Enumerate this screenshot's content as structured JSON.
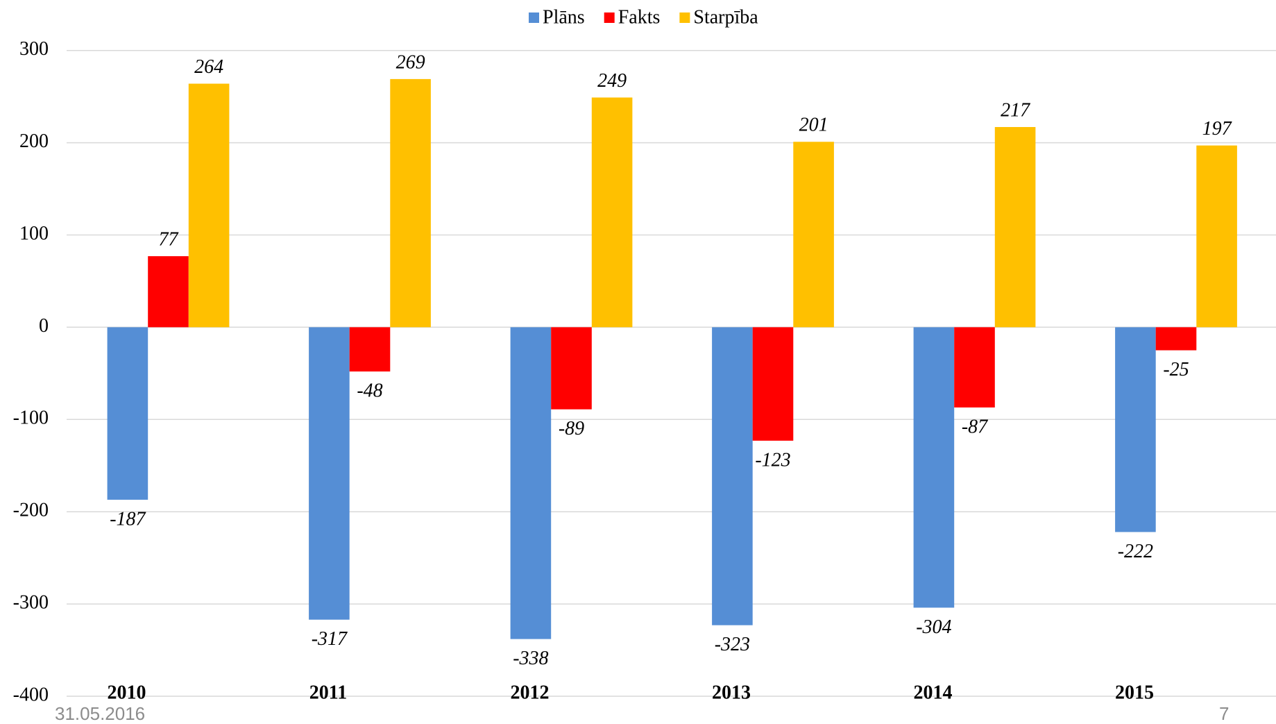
{
  "chart_data": {
    "type": "bar",
    "categories": [
      "2010",
      "2011",
      "2012",
      "2013",
      "2014",
      "2015"
    ],
    "series": [
      {
        "name": "Plāns",
        "color": "#558ed5",
        "values": [
          -187,
          -317,
          -338,
          -323,
          -304,
          -222
        ]
      },
      {
        "name": "Fakts",
        "color": "#ff0000",
        "values": [
          77,
          -48,
          -89,
          -123,
          -87,
          -25
        ]
      },
      {
        "name": "Starpība",
        "color": "#ffc000",
        "values": [
          264,
          269,
          249,
          201,
          217,
          197
        ]
      }
    ],
    "ylim": [
      -400,
      300
    ],
    "yticks": [
      -400,
      -300,
      -200,
      -100,
      0,
      100,
      200,
      300
    ],
    "grid": true,
    "legend": "top"
  },
  "footer": {
    "date": "31.05.2016",
    "page": "7"
  }
}
